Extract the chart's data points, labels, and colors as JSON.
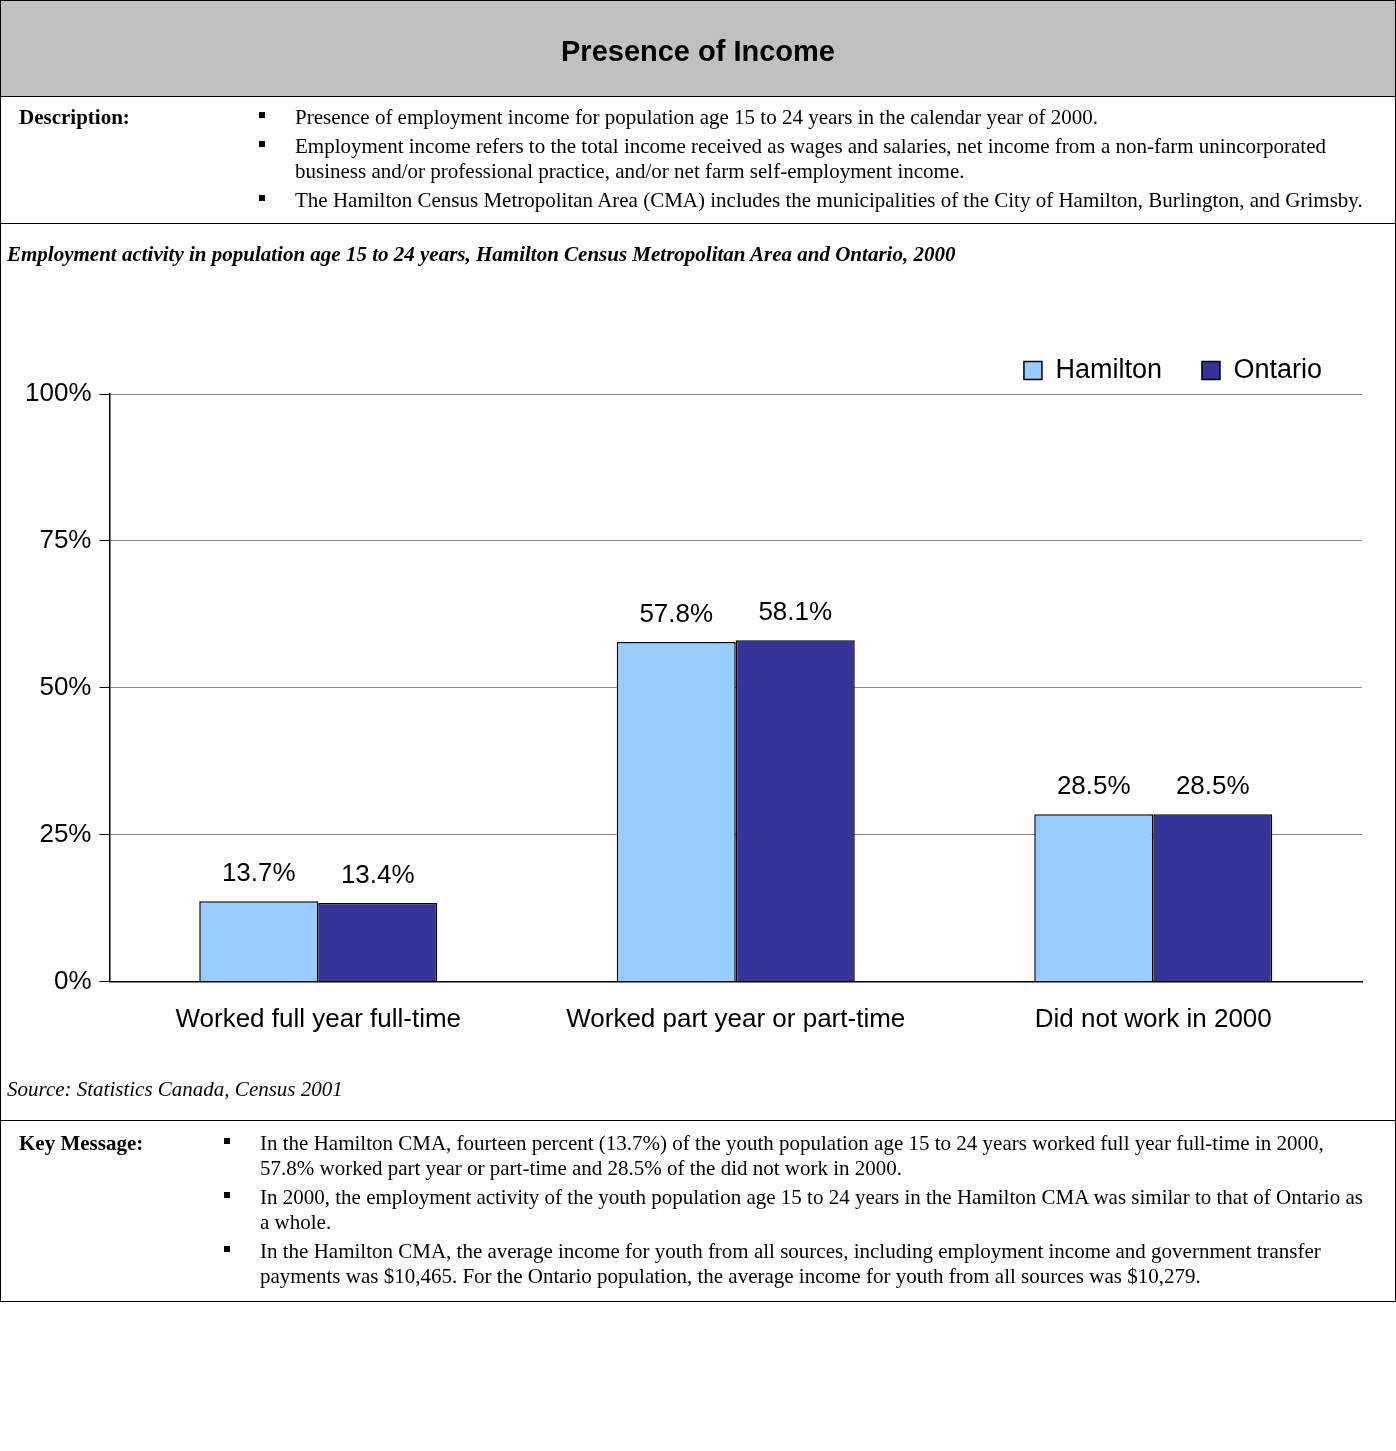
{
  "chart_data": {
    "type": "bar",
    "title": "Presence of Income",
    "subtitle": "Employment activity in population age 15 to 24 years, Hamilton Census Metropolitan Area and Ontario, 2000",
    "annotations": [
      "Description:",
      "Presence of employment income for population age 15 to 24 years in the calendar year of 2000.",
      "Employment income refers to the total income received as wages and salaries, net income from a non-farm unincorporated business and/or professional practice, and/or net farm self-employment income.",
      "The Hamilton Census Metropolitan Area (CMA) includes the municipalities of the City of Hamilton, Burlington, and Grimsby.",
      "Source:  Statistics Canada, Census 2001",
      "Key Message:",
      "In the Hamilton CMA, fourteen percent (13.7%) of the youth population age 15 to 24 years worked full year full-time in 2000, 57.8% worked part year or part-time and 28.5% of the did not work in 2000.",
      "In 2000, the employment activity of the youth population age 15 to 24 years in the Hamilton CMA was similar to that of Ontario as a whole.",
      "In the Hamilton CMA, the average income for youth from all sources, including employment income and government transfer payments was $10,465.  For the Ontario population, the average income for youth from all sources was $10,279."
    ],
    "categories": [
      "Worked full year full-time",
      "Worked part year or part-time",
      "Did not work in 2000"
    ],
    "series": [
      {
        "name": "Hamilton",
        "color": "#99ccff",
        "values": [
          13.7,
          57.8,
          28.5
        ],
        "value_labels": [
          "13.7%",
          "57.8%",
          "28.5%"
        ]
      },
      {
        "name": "Ontario",
        "color": "#333399",
        "values": [
          13.4,
          58.1,
          28.5
        ],
        "value_labels": [
          "13.4%",
          "58.1%",
          "28.5%"
        ]
      }
    ],
    "ylim": [
      0,
      100
    ],
    "yticks": [
      {
        "value": 0,
        "label": "0%"
      },
      {
        "value": 25,
        "label": "25%"
      },
      {
        "value": 50,
        "label": "50%"
      },
      {
        "value": 75,
        "label": "75%"
      },
      {
        "value": 100,
        "label": "100%"
      }
    ],
    "grid": "y",
    "legend": "top right"
  }
}
